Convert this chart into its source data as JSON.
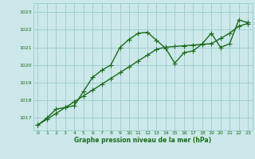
{
  "x": [
    0,
    1,
    2,
    3,
    4,
    5,
    6,
    7,
    8,
    9,
    10,
    11,
    12,
    13,
    14,
    15,
    16,
    17,
    18,
    19,
    20,
    21,
    22,
    23
  ],
  "y_curve": [
    1016.6,
    1017.0,
    1017.5,
    1017.6,
    1017.7,
    1018.5,
    1019.3,
    1019.7,
    1020.0,
    1021.0,
    1021.45,
    1021.8,
    1021.85,
    1021.4,
    1020.95,
    1020.1,
    1020.7,
    1020.8,
    1021.2,
    1021.8,
    1021.0,
    1021.2,
    1022.55,
    1022.4
  ],
  "y_trend": [
    1016.6,
    1016.93,
    1017.26,
    1017.59,
    1017.92,
    1018.25,
    1018.58,
    1018.91,
    1019.24,
    1019.57,
    1019.9,
    1020.23,
    1020.56,
    1020.89,
    1021.01,
    1021.05,
    1021.09,
    1021.13,
    1021.17,
    1021.21,
    1021.5,
    1021.8,
    1022.2,
    1022.35
  ],
  "line_color": "#1a6b1a",
  "bg_color": "#cce8ea",
  "grid_color": "#99cccc",
  "xlabel": "Graphe pression niveau de la mer (hPa)",
  "xlabel_color": "#1a6b1a",
  "ylabel_ticks": [
    1017,
    1018,
    1019,
    1020,
    1021,
    1022,
    1023
  ],
  "xlim": [
    -0.5,
    23.5
  ],
  "ylim": [
    1016.3,
    1023.5
  ],
  "marker": "+",
  "marker_size": 4,
  "linewidth": 1.0
}
